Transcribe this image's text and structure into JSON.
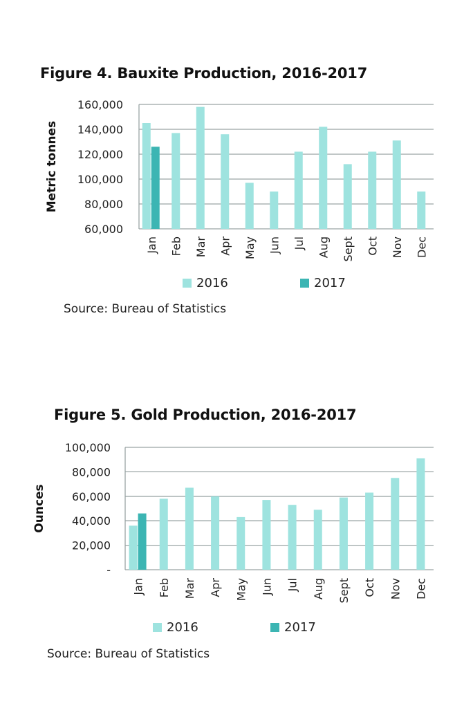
{
  "figures": [
    {
      "title": "Figure 4. Bauxite Production, 2016-2017",
      "source": "Source: Bureau of Statistics"
    },
    {
      "title": "Figure 5. Gold Production, 2016-2017",
      "source": "Source: Bureau of Statistics"
    }
  ],
  "colors": {
    "s2016": "#9ee3df",
    "s2017": "#3cb5b3",
    "grid": "#9aa5a5"
  },
  "chart_data": [
    {
      "type": "bar",
      "title": "Figure 4. Bauxite Production, 2016-2017",
      "ylabel": "Metric tonnes",
      "xlabel": "",
      "categories": [
        "Jan",
        "Feb",
        "Mar",
        "Apr",
        "May",
        "Jun",
        "Jul",
        "Aug",
        "Sept",
        "Oct",
        "Nov",
        "Dec"
      ],
      "ylim": [
        60000,
        160000
      ],
      "yticks": [
        60000,
        80000,
        100000,
        120000,
        140000,
        160000
      ],
      "ytick_labels": [
        "60,000",
        "80,000",
        "100,000",
        "120,000",
        "140,000",
        "160,000"
      ],
      "series": [
        {
          "name": "2016",
          "values": [
            145000,
            137000,
            158000,
            136000,
            97000,
            90000,
            122000,
            142000,
            112000,
            122000,
            131000,
            90000
          ]
        },
        {
          "name": "2017",
          "values": [
            126000,
            null,
            null,
            null,
            null,
            null,
            null,
            null,
            null,
            null,
            null,
            null
          ]
        }
      ],
      "legend": "bottom",
      "grid": true
    },
    {
      "type": "bar",
      "title": "Figure 5. Gold Production, 2016-2017",
      "ylabel": "Ounces",
      "xlabel": "",
      "categories": [
        "Jan",
        "Feb",
        "Mar",
        "Apr",
        "May",
        "Jun",
        "Jul",
        "Aug",
        "Sept",
        "Oct",
        "Nov",
        "Dec"
      ],
      "ylim": [
        0,
        100000
      ],
      "yticks": [
        0,
        20000,
        40000,
        60000,
        80000,
        100000
      ],
      "ytick_labels": [
        "-",
        "20,000",
        "40,000",
        "60,000",
        "80,000",
        "100,000"
      ],
      "series": [
        {
          "name": "2016",
          "values": [
            36000,
            58000,
            67000,
            60000,
            43000,
            57000,
            53000,
            49000,
            59000,
            63000,
            75000,
            91000
          ]
        },
        {
          "name": "2017",
          "values": [
            46000,
            null,
            null,
            null,
            null,
            null,
            null,
            null,
            null,
            null,
            null,
            null
          ]
        }
      ],
      "legend": "bottom",
      "grid": true
    }
  ]
}
